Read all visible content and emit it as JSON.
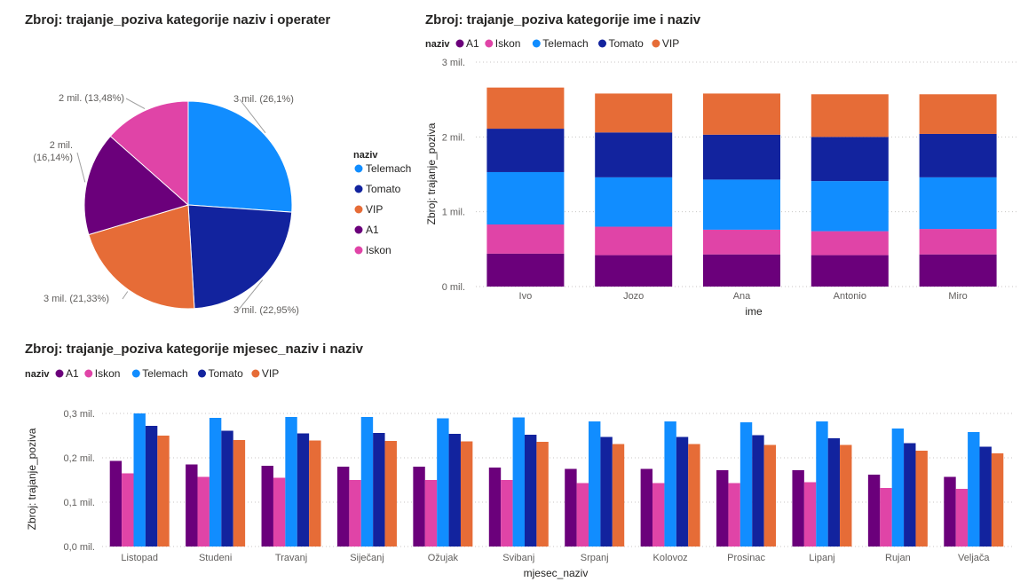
{
  "colors": {
    "A1": "#6B007B",
    "Iskon": "#E044A7",
    "Telemach": "#118DFF",
    "Tomato": "#12239E",
    "VIP": "#E66C37"
  },
  "chart_data": [
    {
      "type": "pie",
      "title": "Zbroj: trajanje_poziva kategorije naziv i operater",
      "legend_title": "naziv",
      "legend_items": [
        "Telemach",
        "Tomato",
        "VIP",
        "A1",
        "Iskon"
      ],
      "slices": [
        {
          "name": "Telemach",
          "percent": 26.1,
          "label": "3 mil. (26,1%)"
        },
        {
          "name": "Tomato",
          "percent": 22.95,
          "label": "3 mil. (22,95%)"
        },
        {
          "name": "VIP",
          "percent": 21.33,
          "label": "3 mil. (21,33%)"
        },
        {
          "name": "A1",
          "percent": 16.14,
          "label": "2 mil. (16,14%)"
        },
        {
          "name": "Iskon",
          "percent": 13.48,
          "label": "2 mil. (13,48%)"
        }
      ]
    },
    {
      "type": "bar",
      "stacked": true,
      "title": "Zbroj: trajanje_poziva kategorije ime i naziv",
      "legend_title": "naziv",
      "xlabel": "ime",
      "ylabel": "Zbroj: trajanje_poziva",
      "ylim": [
        0,
        3
      ],
      "yticks": [
        {
          "v": 0,
          "label": "0 mil."
        },
        {
          "v": 1,
          "label": "1 mil."
        },
        {
          "v": 2,
          "label": "2 mil."
        },
        {
          "v": 3,
          "label": "3 mil."
        }
      ],
      "categories": [
        "Ivo",
        "Jozo",
        "Ana",
        "Antonio",
        "Miro"
      ],
      "series": [
        {
          "name": "A1",
          "values": [
            0.44,
            0.42,
            0.43,
            0.42,
            0.43
          ]
        },
        {
          "name": "Iskon",
          "values": [
            0.39,
            0.38,
            0.33,
            0.32,
            0.34
          ]
        },
        {
          "name": "Telemach",
          "values": [
            0.7,
            0.66,
            0.67,
            0.67,
            0.69
          ]
        },
        {
          "name": "Tomato",
          "values": [
            0.58,
            0.6,
            0.6,
            0.59,
            0.58
          ]
        },
        {
          "name": "VIP",
          "values": [
            0.55,
            0.52,
            0.55,
            0.57,
            0.53
          ]
        }
      ]
    },
    {
      "type": "bar",
      "stacked": false,
      "title": "Zbroj: trajanje_poziva kategorije mjesec_naziv i naziv",
      "legend_title": "naziv",
      "xlabel": "mjesec_naziv",
      "ylabel": "Zbroj: trajanje_poziva",
      "ylim": [
        0,
        0.3
      ],
      "yticks": [
        {
          "v": 0,
          "label": "0,0 mil."
        },
        {
          "v": 0.1,
          "label": "0,1 mil."
        },
        {
          "v": 0.2,
          "label": "0,2 mil."
        },
        {
          "v": 0.3,
          "label": "0,3 mil."
        }
      ],
      "categories": [
        "Listopad",
        "Studeni",
        "Travanj",
        "Siječanj",
        "Ožujak",
        "Svibanj",
        "Srpanj",
        "Kolovoz",
        "Prosinac",
        "Lipanj",
        "Rujan",
        "Veljača"
      ],
      "series": [
        {
          "name": "A1",
          "values": [
            0.193,
            0.185,
            0.182,
            0.18,
            0.18,
            0.178,
            0.175,
            0.175,
            0.172,
            0.172,
            0.162,
            0.157
          ]
        },
        {
          "name": "Iskon",
          "values": [
            0.165,
            0.157,
            0.155,
            0.15,
            0.15,
            0.15,
            0.143,
            0.143,
            0.143,
            0.145,
            0.132,
            0.13
          ]
        },
        {
          "name": "Telemach",
          "values": [
            0.3,
            0.29,
            0.292,
            0.292,
            0.289,
            0.291,
            0.282,
            0.282,
            0.28,
            0.282,
            0.266,
            0.258
          ]
        },
        {
          "name": "Tomato",
          "values": [
            0.272,
            0.261,
            0.255,
            0.256,
            0.254,
            0.252,
            0.247,
            0.247,
            0.251,
            0.244,
            0.233,
            0.225
          ]
        },
        {
          "name": "VIP",
          "values": [
            0.25,
            0.24,
            0.239,
            0.238,
            0.237,
            0.236,
            0.231,
            0.231,
            0.229,
            0.229,
            0.216,
            0.21
          ]
        }
      ]
    }
  ]
}
